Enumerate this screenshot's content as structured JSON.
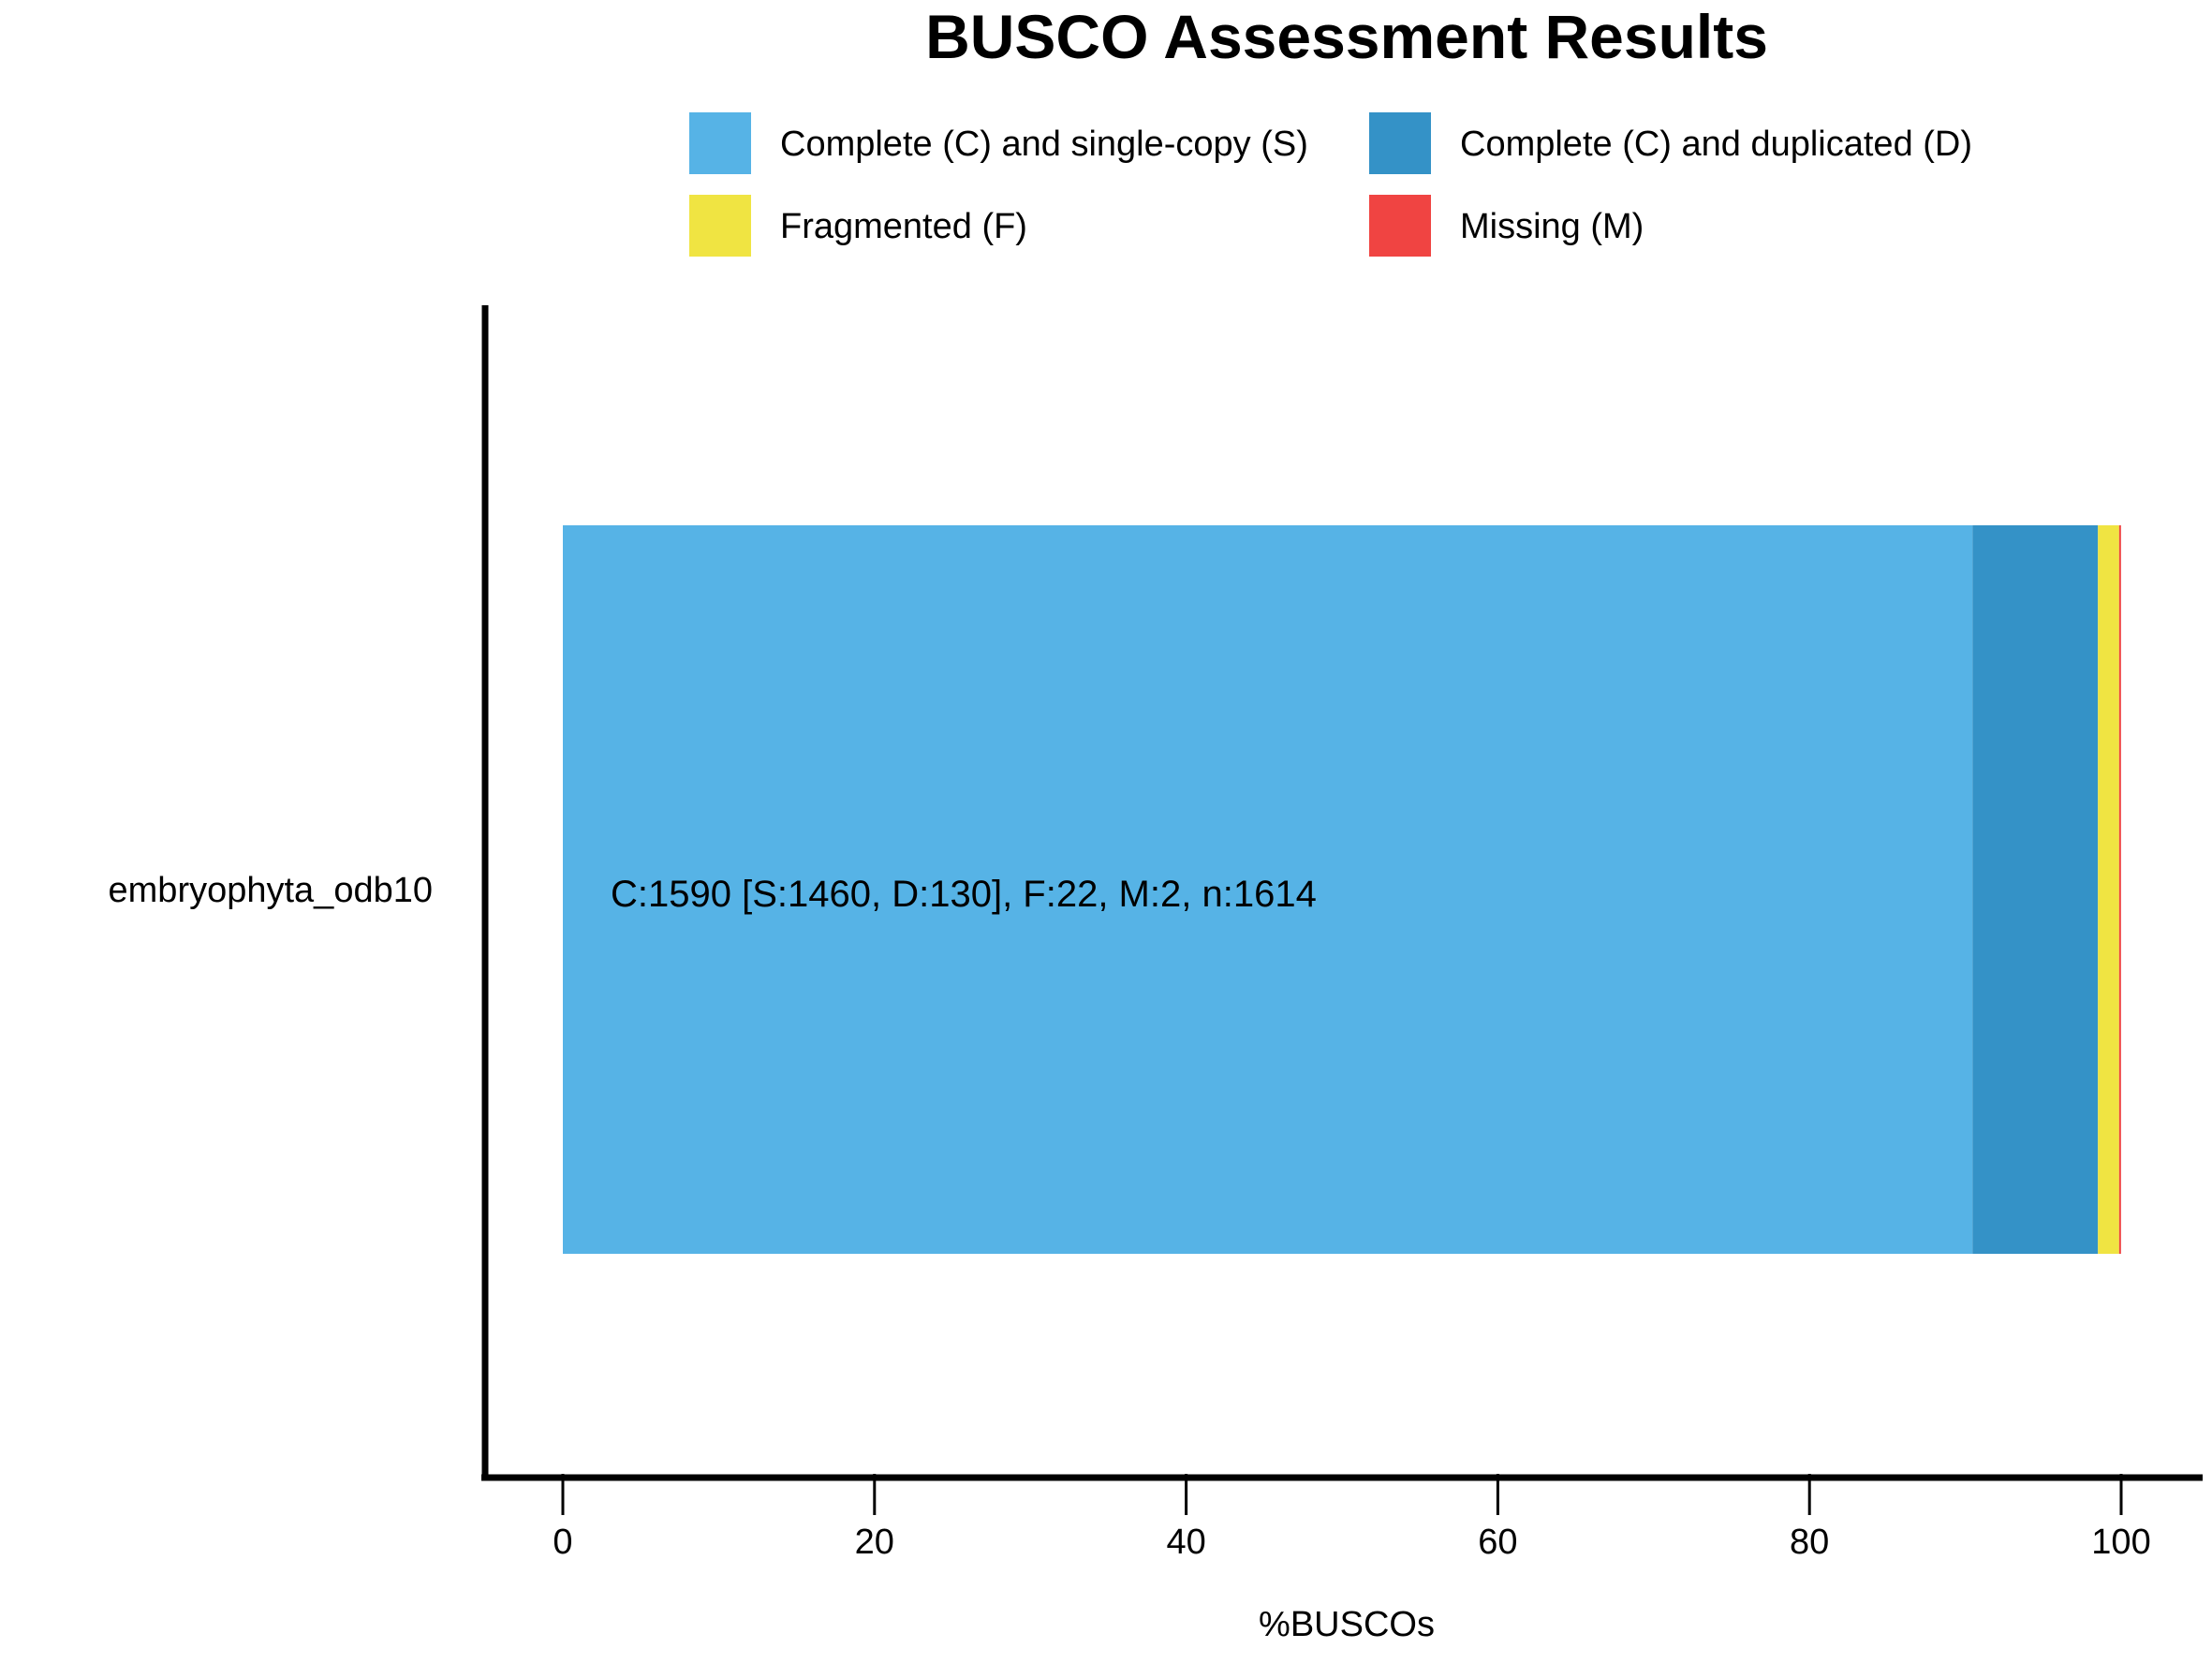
{
  "chart_data": {
    "type": "bar",
    "orientation": "horizontal",
    "stacked": true,
    "title": "BUSCO Assessment Results",
    "xlabel": "%BUSCOs",
    "ylabel": "",
    "xlim": [
      0,
      100
    ],
    "x_ticks": [
      0,
      20,
      40,
      60,
      80,
      100
    ],
    "x_tick_labels": [
      "0",
      "20",
      "40",
      "60",
      "80",
      "100"
    ],
    "grid": false,
    "legend_position": "top",
    "categories": [
      "embryophyta_odb10"
    ],
    "series": [
      {
        "name": "Complete (C) and single-copy (S)",
        "color": "#56B3E6",
        "values": [
          90.46
        ]
      },
      {
        "name": "Complete (C) and duplicated (D)",
        "color": "#3492C7",
        "values": [
          8.05
        ]
      },
      {
        "name": "Fragmented (F)",
        "color": "#F0E442",
        "values": [
          1.36
        ]
      },
      {
        "name": "Missing (M)",
        "color": "#F04442",
        "values": [
          0.12
        ]
      }
    ],
    "annotations": [
      "C:1590 [S:1460, D:130], F:22, M:2, n:1614"
    ]
  }
}
